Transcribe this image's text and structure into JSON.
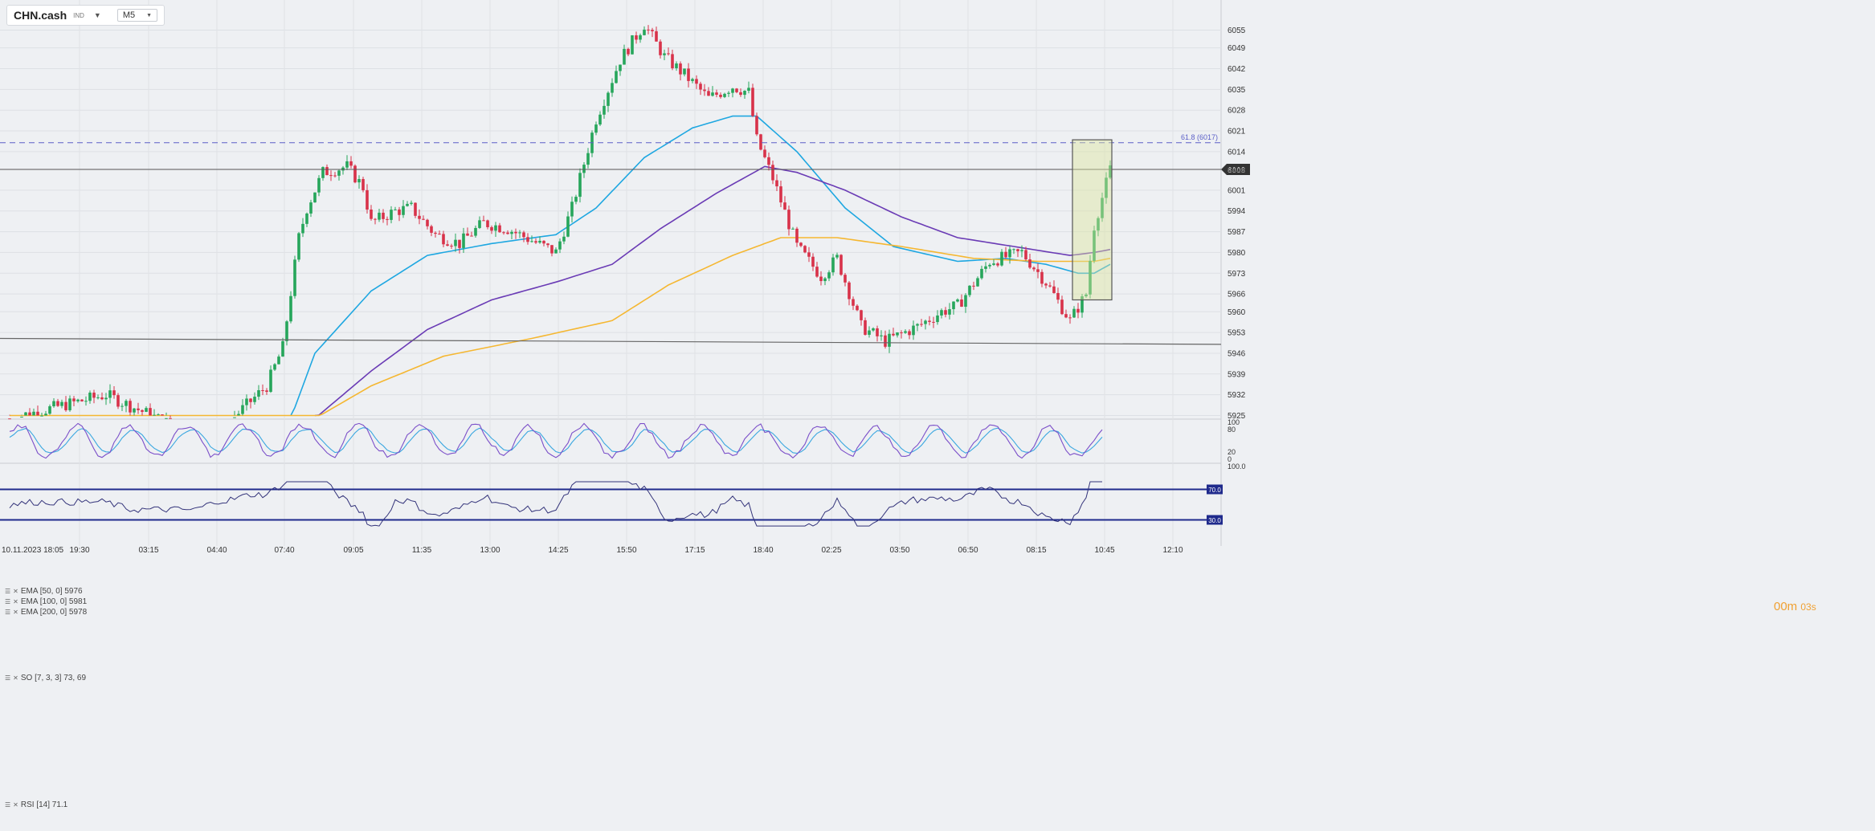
{
  "toolbar": {
    "symbol": "CHN.cash",
    "symbol_sub": "IND",
    "timeframe": "M5"
  },
  "timer": {
    "minutes": "00m",
    "seconds": "03s"
  },
  "colors": {
    "up": "#26a65b",
    "down": "#d8324a",
    "ema50": "#1ea7e1",
    "ema100": "#6a3bb5",
    "ema200": "#f5b731",
    "fib": "#5b5fc7",
    "stoch_k": "#7b4fc9",
    "stoch_d": "#3aa7e0",
    "rsi": "#33337a",
    "rsi_level": "#1f2a8c"
  },
  "indicators": {
    "ema50": "EMA [50, 0] 5976",
    "ema100": "EMA [100, 0] 5981",
    "ema200": "EMA [200, 0] 5978",
    "stoch": "SO [7, 3, 3] 73, 69",
    "rsi": "RSI [14] 71.1"
  },
  "chart_data": {
    "type": "candlestick",
    "price_ticks": [
      6055,
      6049,
      6042,
      6035,
      6028,
      6021,
      6014,
      6008,
      6001,
      5994,
      5987,
      5980,
      5973,
      5966,
      5960,
      5953,
      5946,
      5939,
      5932,
      5925
    ],
    "price_range": [
      5925,
      6058
    ],
    "current_price": "6008",
    "fib_level": {
      "label": "61.8 (6017)",
      "value": 6017
    },
    "support_line_start": 5951,
    "support_line_end": 5949,
    "time_labels": [
      "10.11.2023  18:05",
      "19:30",
      "03:15",
      "04:40",
      "07:40",
      "09:05",
      "11:35",
      "13:00",
      "14:25",
      "15:50",
      "17:15",
      "18:40",
      "02:25",
      "03:50",
      "06:50",
      "08:15",
      "10:45",
      "12:10"
    ],
    "stoch_ticks": [
      "100",
      "80",
      "20",
      "0"
    ],
    "rsi_ticks": [
      "100.0",
      "70.0",
      "30.0",
      "0"
    ],
    "rsi_level_labels": [
      "70.0",
      "30.0"
    ],
    "key_points": [
      {
        "i": 0,
        "p": 5924
      },
      {
        "i": 18,
        "p": 5930
      },
      {
        "i": 24,
        "p": 5932
      },
      {
        "i": 40,
        "p": 5922
      },
      {
        "i": 46,
        "p": 5918
      },
      {
        "i": 54,
        "p": 5922
      },
      {
        "i": 64,
        "p": 5935
      },
      {
        "i": 68,
        "p": 5948
      },
      {
        "i": 72,
        "p": 5985
      },
      {
        "i": 74,
        "p": 5995
      },
      {
        "i": 78,
        "p": 6007
      },
      {
        "i": 84,
        "p": 6009
      },
      {
        "i": 88,
        "p": 6002
      },
      {
        "i": 90,
        "p": 5990
      },
      {
        "i": 96,
        "p": 5994
      },
      {
        "i": 100,
        "p": 5995
      },
      {
        "i": 106,
        "p": 5986
      },
      {
        "i": 112,
        "p": 5983
      },
      {
        "i": 118,
        "p": 5990
      },
      {
        "i": 124,
        "p": 5988
      },
      {
        "i": 130,
        "p": 5984
      },
      {
        "i": 136,
        "p": 5980
      },
      {
        "i": 140,
        "p": 5995
      },
      {
        "i": 146,
        "p": 6025
      },
      {
        "i": 152,
        "p": 6045
      },
      {
        "i": 158,
        "p": 6057
      },
      {
        "i": 163,
        "p": 6046
      },
      {
        "i": 168,
        "p": 6040
      },
      {
        "i": 174,
        "p": 6032
      },
      {
        "i": 180,
        "p": 6036
      },
      {
        "i": 184,
        "p": 6034
      },
      {
        "i": 186,
        "p": 6018
      },
      {
        "i": 190,
        "p": 6005
      },
      {
        "i": 196,
        "p": 5982
      },
      {
        "i": 202,
        "p": 5972
      },
      {
        "i": 206,
        "p": 5978
      },
      {
        "i": 212,
        "p": 5955
      },
      {
        "i": 218,
        "p": 5950
      },
      {
        "i": 226,
        "p": 5955
      },
      {
        "i": 232,
        "p": 5960
      },
      {
        "i": 236,
        "p": 5962
      },
      {
        "i": 244,
        "p": 5977
      },
      {
        "i": 252,
        "p": 5980
      },
      {
        "i": 258,
        "p": 5970
      },
      {
        "i": 264,
        "p": 5957
      },
      {
        "i": 268,
        "p": 5966
      },
      {
        "i": 270,
        "p": 5989
      },
      {
        "i": 274,
        "p": 6008
      }
    ],
    "ema50_points": [
      {
        "i": 70,
        "p": 5924
      },
      {
        "i": 76,
        "p": 5946
      },
      {
        "i": 90,
        "p": 5967
      },
      {
        "i": 104,
        "p": 5979
      },
      {
        "i": 120,
        "p": 5983
      },
      {
        "i": 136,
        "p": 5986
      },
      {
        "i": 146,
        "p": 5995
      },
      {
        "i": 158,
        "p": 6012
      },
      {
        "i": 170,
        "p": 6022
      },
      {
        "i": 180,
        "p": 6026
      },
      {
        "i": 186,
        "p": 6026
      },
      {
        "i": 196,
        "p": 6014
      },
      {
        "i": 208,
        "p": 5995
      },
      {
        "i": 220,
        "p": 5982
      },
      {
        "i": 236,
        "p": 5977
      },
      {
        "i": 248,
        "p": 5978
      },
      {
        "i": 258,
        "p": 5976
      },
      {
        "i": 266,
        "p": 5973
      },
      {
        "i": 270,
        "p": 5973
      },
      {
        "i": 274,
        "p": 5976
      }
    ],
    "ema100_points": [
      {
        "i": 76,
        "p": 5924
      },
      {
        "i": 90,
        "p": 5940
      },
      {
        "i": 104,
        "p": 5954
      },
      {
        "i": 120,
        "p": 5964
      },
      {
        "i": 136,
        "p": 5970
      },
      {
        "i": 150,
        "p": 5976
      },
      {
        "i": 162,
        "p": 5988
      },
      {
        "i": 176,
        "p": 6000
      },
      {
        "i": 188,
        "p": 6009
      },
      {
        "i": 196,
        "p": 6007
      },
      {
        "i": 208,
        "p": 6001
      },
      {
        "i": 222,
        "p": 5992
      },
      {
        "i": 236,
        "p": 5985
      },
      {
        "i": 250,
        "p": 5982
      },
      {
        "i": 264,
        "p": 5979
      },
      {
        "i": 270,
        "p": 5980
      },
      {
        "i": 274,
        "p": 5981
      }
    ],
    "ema200_points": [
      {
        "i": 0,
        "p": 5925
      },
      {
        "i": 14,
        "p": 5923
      },
      {
        "i": 76,
        "p": 5924
      },
      {
        "i": 90,
        "p": 5935
      },
      {
        "i": 108,
        "p": 5945
      },
      {
        "i": 130,
        "p": 5951
      },
      {
        "i": 150,
        "p": 5957
      },
      {
        "i": 164,
        "p": 5969
      },
      {
        "i": 180,
        "p": 5979
      },
      {
        "i": 192,
        "p": 5985
      },
      {
        "i": 206,
        "p": 5985
      },
      {
        "i": 222,
        "p": 5982
      },
      {
        "i": 240,
        "p": 5978
      },
      {
        "i": 256,
        "p": 5977
      },
      {
        "i": 270,
        "p": 5977
      },
      {
        "i": 274,
        "p": 5978
      }
    ]
  }
}
